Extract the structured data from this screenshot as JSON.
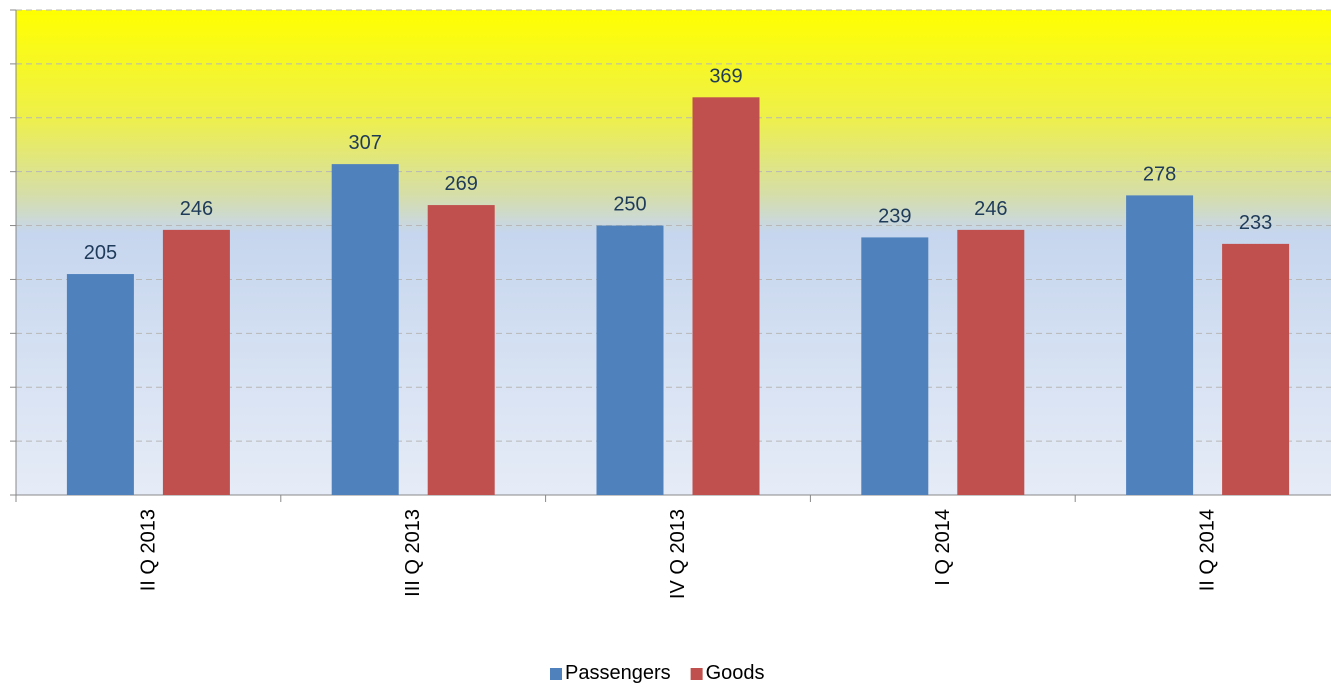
{
  "chart_data": {
    "type": "bar",
    "categories": [
      "II Q 2013",
      "III Q 2013",
      "IV Q 2013",
      "I Q 2014",
      "II Q 2014"
    ],
    "series": [
      {
        "name": "Passengers",
        "values": [
          205,
          307,
          250,
          239,
          278
        ],
        "color": "#4f81bd"
      },
      {
        "name": "Goods",
        "values": [
          246,
          269,
          369,
          246,
          233
        ],
        "color": "#c0504d"
      }
    ],
    "ylim": [
      0,
      450
    ],
    "grid": true,
    "legend": "bottom"
  }
}
